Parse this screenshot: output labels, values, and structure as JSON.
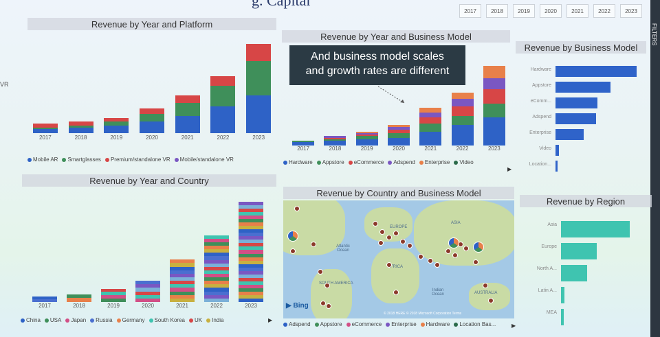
{
  "header": {
    "title_fragment": "g. Capital",
    "filters_label": "FILTERS",
    "left_edge_text": "VR"
  },
  "years": [
    "2017",
    "2018",
    "2019",
    "2020",
    "2021",
    "2022",
    "2023"
  ],
  "colors": {
    "blue": "#2e62c6",
    "green": "#3f8f5a",
    "red": "#d74646",
    "purple": "#7a57c2",
    "orange": "#e8804a",
    "pink": "#d24f86",
    "teal": "#3fc4b0",
    "hbar": "#2f63c9"
  },
  "platform_chart": {
    "title": "Revenue by Year and Platform",
    "legend": [
      "Mobile AR",
      "Smartglasses",
      "Premium/standalone VR",
      "Mobile/standalone VR"
    ]
  },
  "business_chart": {
    "title": "Revenue by Year and Business Model",
    "callout_line1": "And business model scales",
    "callout_line2": "and growth rates are different",
    "legend": [
      "Hardware",
      "Appstore",
      "eCommerce",
      "Adspend",
      "Enterprise",
      "Video"
    ]
  },
  "bm_bar": {
    "title": "Revenue by Business Model",
    "labels": [
      "Hardware",
      "Appstore",
      "eComm...",
      "Adspend",
      "Enterprise",
      "Video",
      "Location..."
    ]
  },
  "country_chart": {
    "title": "Revenue by Year and Country",
    "legend": [
      "China",
      "USA",
      "Japan",
      "Russia",
      "Germany",
      "South Korea",
      "UK",
      "India"
    ]
  },
  "map_chart": {
    "title": "Revenue by Country and Business Model",
    "labels": {
      "europe": "EUROPE",
      "asia": "ASIA",
      "atlantic": "Atlantic Ocean",
      "africa": "AFRICA",
      "south_america": "SOUTH AMERICA",
      "indian": "Indian Ocean",
      "australia": "AUSTRALIA",
      "bing": "Bing",
      "copyright": "© 2018 HERE © 2018 Microsoft Corporation Terms"
    },
    "legend": [
      "Adspend",
      "Appstore",
      "eCommerce",
      "Enterprise",
      "Hardware",
      "Location Bas..."
    ]
  },
  "region_chart": {
    "title": "Revenue by Region",
    "labels": [
      "Asia",
      "Europe",
      "North A...",
      "Latin A...",
      "MEA"
    ]
  },
  "chart_data": [
    {
      "type": "bar",
      "title": "Revenue by Year and Platform",
      "categories": [
        "2017",
        "2018",
        "2019",
        "2020",
        "2021",
        "2022",
        "2023"
      ],
      "series": [
        {
          "name": "Mobile AR",
          "values": [
            2,
            3,
            4,
            6,
            9,
            14,
            20
          ]
        },
        {
          "name": "Smartglasses",
          "values": [
            1,
            1,
            2,
            4,
            7,
            11,
            18
          ]
        },
        {
          "name": "Premium/standalone VR",
          "values": [
            2,
            2,
            2,
            3,
            4,
            5,
            9
          ]
        },
        {
          "name": "Mobile/standalone VR",
          "values": [
            0,
            0,
            0,
            0,
            0,
            0,
            0
          ]
        }
      ]
    },
    {
      "type": "bar",
      "title": "Revenue by Year and Business Model",
      "categories": [
        "2017",
        "2018",
        "2019",
        "2020",
        "2021",
        "2022",
        "2023"
      ],
      "series": [
        {
          "name": "Hardware",
          "values": [
            2,
            3,
            4,
            5,
            9,
            13,
            18
          ]
        },
        {
          "name": "Appstore",
          "values": [
            1,
            1,
            2,
            3,
            5,
            6,
            9
          ]
        },
        {
          "name": "eCommerce",
          "values": [
            0,
            1,
            1,
            2,
            4,
            6,
            9
          ]
        },
        {
          "name": "Adspend",
          "values": [
            0,
            1,
            1,
            2,
            3,
            5,
            7
          ]
        },
        {
          "name": "Enterprise",
          "values": [
            0,
            0,
            1,
            1,
            3,
            4,
            8
          ]
        },
        {
          "name": "Video",
          "values": [
            0,
            0,
            0,
            0,
            0,
            0,
            0
          ]
        }
      ]
    },
    {
      "type": "bar",
      "title": "Revenue by Business Model",
      "categories": [
        "Hardware",
        "Appstore",
        "eComm...",
        "Adspend",
        "Enterprise",
        "Video",
        "Location..."
      ],
      "values": [
        100,
        68,
        52,
        50,
        35,
        4,
        2
      ]
    },
    {
      "type": "bar",
      "title": "Revenue by Year and Country",
      "categories": [
        "2017",
        "2018",
        "2019",
        "2020",
        "2021",
        "2022",
        "2023"
      ],
      "values": [
        5,
        7,
        12,
        19,
        38,
        60,
        90
      ]
    },
    {
      "type": "bar",
      "title": "Revenue by Region",
      "categories": [
        "Asia",
        "Europe",
        "North A...",
        "Latin A...",
        "MEA"
      ],
      "values": [
        100,
        52,
        38,
        5,
        4
      ]
    }
  ]
}
